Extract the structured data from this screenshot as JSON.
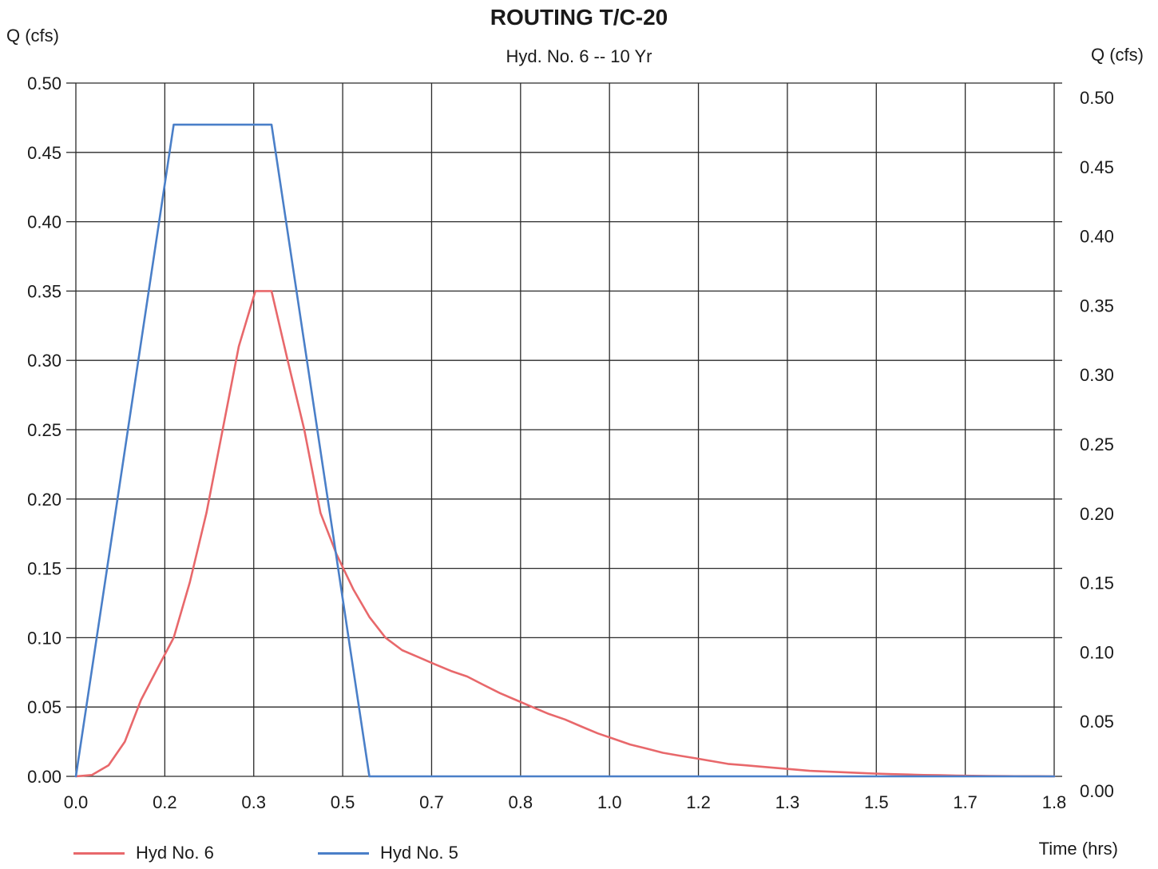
{
  "chart_data": {
    "type": "line",
    "title": "ROUTING T/C-20",
    "subtitle": "Hyd. No. 6 -- 10 Yr",
    "ylabel_left": "Q (cfs)",
    "ylabel_right": "Q (cfs)",
    "xlabel": "Time (hrs)",
    "xlim": [
      0,
      2.0
    ],
    "ylim": [
      0,
      0.5
    ],
    "x_tick_labels": [
      "0.0",
      "0.2",
      "0.3",
      "0.5",
      "0.7",
      "0.8",
      "1.0",
      "1.2",
      "1.3",
      "1.5",
      "1.7",
      "1.8"
    ],
    "y_tick_labels": [
      "0.00",
      "0.05",
      "0.10",
      "0.15",
      "0.20",
      "0.25",
      "0.30",
      "0.35",
      "0.40",
      "0.45",
      "0.50"
    ],
    "grid": true,
    "legend_position": "bottom-left",
    "series": [
      {
        "name": "Hyd No. 6",
        "color": "#e8686b",
        "x": [
          0,
          0.033,
          0.067,
          0.1,
          0.133,
          0.167,
          0.2,
          0.233,
          0.267,
          0.3,
          0.333,
          0.367,
          0.4,
          0.433,
          0.467,
          0.5,
          0.533,
          0.567,
          0.6,
          0.633,
          0.667,
          0.7,
          0.733,
          0.767,
          0.8,
          0.833,
          0.867,
          0.9,
          0.933,
          0.967,
          1.0,
          1.033,
          1.067,
          1.1,
          1.133,
          1.167,
          1.2,
          1.233,
          1.267,
          1.3,
          1.333,
          1.367,
          1.4,
          1.433,
          1.467,
          1.5,
          1.533,
          1.567,
          1.6,
          1.633,
          1.667,
          1.7,
          1.733,
          1.767,
          1.8,
          1.833,
          1.867,
          1.9,
          1.933,
          1.967,
          2.0
        ],
        "values": [
          0,
          0.001,
          0.008,
          0.025,
          0.055,
          0.078,
          0.1,
          0.14,
          0.19,
          0.25,
          0.31,
          0.35,
          0.35,
          0.3,
          0.25,
          0.19,
          0.16,
          0.135,
          0.115,
          0.1,
          0.091,
          0.086,
          0.081,
          0.076,
          0.072,
          0.066,
          0.06,
          0.055,
          0.05,
          0.045,
          0.041,
          0.036,
          0.031,
          0.027,
          0.023,
          0.02,
          0.017,
          0.015,
          0.013,
          0.011,
          0.009,
          0.008,
          0.007,
          0.006,
          0.005,
          0.004,
          0.0035,
          0.003,
          0.0025,
          0.002,
          0.0016,
          0.0013,
          0.001,
          0.0008,
          0.0006,
          0.0004,
          0.0003,
          0.0002,
          0.0001,
          0.0001,
          0
        ]
      },
      {
        "name": "Hyd No. 5",
        "color": "#4a7fc8",
        "x": [
          0,
          0.2,
          0.4,
          0.6,
          2.0
        ],
        "values": [
          0,
          0.47,
          0.47,
          0,
          0
        ]
      }
    ]
  }
}
